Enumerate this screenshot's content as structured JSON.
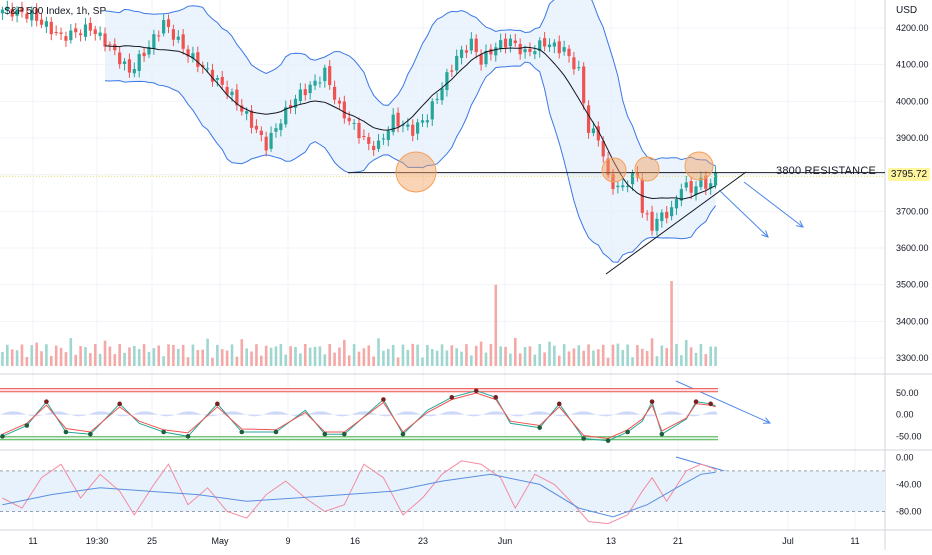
{
  "header": {
    "title": "S&P 500 Index, 1h, SP",
    "currency": "USD"
  },
  "price_label": "3795.72",
  "annotation": {
    "resistance": "3800 RESISTANCE"
  },
  "colors": {
    "up": "#26a69a",
    "down": "#ef5350",
    "band": "#3b78e7",
    "band_fill": "#e3eefc",
    "ma": "#131722",
    "circle": "#f5a05a",
    "arrow": "#4a86e8"
  },
  "chart_data": [
    {
      "type": "candlestick",
      "title": "S&P 500 Index, 1h, SP",
      "ylabel": "USD",
      "y_ticks": [
        "4200.00",
        "4100.00",
        "4000.00",
        "3900.00",
        "3800.00",
        "3700.00",
        "3600.00",
        "3500.00",
        "3400.00",
        "3300.00"
      ],
      "x_ticks": [
        "11",
        "19:30",
        "25",
        "May",
        "9",
        "16",
        "23",
        "Jun",
        "13",
        "21",
        "Jul",
        "11"
      ],
      "last_price": 3795.72,
      "resistance_level": 3800,
      "resistance_label": "3800 RESISTANCE",
      "close_trace": [
        [
          0,
          4250
        ],
        [
          6,
          4235
        ],
        [
          12,
          4175
        ],
        [
          18,
          4200
        ],
        [
          22,
          4150
        ],
        [
          26,
          4080
        ],
        [
          30,
          4150
        ],
        [
          33,
          4215
        ],
        [
          38,
          4130
        ],
        [
          42,
          4080
        ],
        [
          46,
          4030
        ],
        [
          50,
          3960
        ],
        [
          54,
          3880
        ],
        [
          57,
          3950
        ],
        [
          60,
          4010
        ],
        [
          64,
          4050
        ],
        [
          66,
          4080
        ],
        [
          69,
          3980
        ],
        [
          72,
          3930
        ],
        [
          75,
          3880
        ],
        [
          77,
          3880
        ],
        [
          80,
          3950
        ],
        [
          84,
          3920
        ],
        [
          87,
          3960
        ],
        [
          90,
          4040
        ],
        [
          93,
          4120
        ],
        [
          96,
          4160
        ],
        [
          98,
          4110
        ],
        [
          101,
          4150
        ],
        [
          104,
          4165
        ],
        [
          107,
          4130
        ],
        [
          111,
          4160
        ],
        [
          115,
          4140
        ],
        [
          118,
          4080
        ],
        [
          120,
          3920
        ],
        [
          122,
          3905
        ],
        [
          124,
          3790
        ],
        [
          126,
          3760
        ],
        [
          128,
          3780
        ],
        [
          130,
          3800
        ],
        [
          131,
          3700
        ],
        [
          133,
          3660
        ],
        [
          135,
          3690
        ],
        [
          137,
          3700
        ],
        [
          139,
          3770
        ],
        [
          141,
          3760
        ],
        [
          143,
          3780
        ],
        [
          145,
          3770
        ],
        [
          146,
          3800
        ]
      ],
      "volume_spikes": [
        {
          "x": 101,
          "height_price": 3500
        },
        {
          "x": 137,
          "height_price": 3510
        }
      ]
    },
    {
      "type": "line",
      "title": "Stochastic RSI",
      "y_ticks": [
        "50.00",
        "0.00",
        "-50.00"
      ],
      "ylim": [
        -70,
        80
      ],
      "levels": [
        60,
        53,
        -51,
        -58
      ],
      "series": [
        {
          "values": [
            [
              0,
              -50
            ],
            [
              5,
              -25
            ],
            [
              9,
              30
            ],
            [
              13,
              -40
            ],
            [
              18,
              -45
            ],
            [
              24,
              25
            ],
            [
              28,
              -20
            ],
            [
              33,
              -40
            ],
            [
              38,
              -50
            ],
            [
              44,
              25
            ],
            [
              49,
              -40
            ],
            [
              56,
              -40
            ],
            [
              62,
              10
            ],
            [
              66,
              -45
            ],
            [
              70,
              -45
            ],
            [
              78,
              35
            ],
            [
              82,
              -45
            ],
            [
              87,
              10
            ],
            [
              92,
              40
            ],
            [
              97,
              55
            ],
            [
              101,
              40
            ],
            [
              104,
              -20
            ],
            [
              110,
              -30
            ],
            [
              114,
              25
            ],
            [
              119,
              -55
            ],
            [
              124,
              -60
            ],
            [
              128,
              -40
            ],
            [
              131,
              -15
            ],
            [
              133,
              30
            ],
            [
              135,
              -45
            ],
            [
              140,
              -10
            ],
            [
              142,
              30
            ],
            [
              145,
              25
            ],
            [
              146,
              20
            ]
          ]
        },
        {
          "values": [
            [
              0,
              -45
            ],
            [
              5,
              -20
            ],
            [
              9,
              22
            ],
            [
              13,
              -32
            ],
            [
              18,
              -40
            ],
            [
              24,
              18
            ],
            [
              28,
              -15
            ],
            [
              33,
              -35
            ],
            [
              38,
              -42
            ],
            [
              44,
              18
            ],
            [
              49,
              -33
            ],
            [
              56,
              -35
            ],
            [
              62,
              5
            ],
            [
              66,
              -40
            ],
            [
              70,
              -40
            ],
            [
              78,
              28
            ],
            [
              82,
              -40
            ],
            [
              87,
              5
            ],
            [
              92,
              35
            ],
            [
              97,
              50
            ],
            [
              101,
              35
            ],
            [
              104,
              -15
            ],
            [
              110,
              -25
            ],
            [
              114,
              18
            ],
            [
              119,
              -48
            ],
            [
              124,
              -55
            ],
            [
              128,
              -35
            ],
            [
              131,
              -10
            ],
            [
              133,
              22
            ],
            [
              135,
              -38
            ],
            [
              140,
              -8
            ],
            [
              142,
              25
            ],
            [
              145,
              22
            ],
            [
              146,
              18
            ]
          ]
        }
      ]
    },
    {
      "type": "line",
      "title": "Williams %R",
      "y_ticks": [
        "0.00",
        "-40.00",
        "-80.00"
      ],
      "ylim": [
        -100,
        8
      ],
      "levels": [
        -20,
        -80
      ],
      "series": [
        {
          "values": [
            [
              0,
              -60
            ],
            [
              4,
              -75
            ],
            [
              8,
              -30
            ],
            [
              12,
              -10
            ],
            [
              16,
              -60
            ],
            [
              20,
              -25
            ],
            [
              24,
              -50
            ],
            [
              27,
              -85
            ],
            [
              31,
              -40
            ],
            [
              34,
              -10
            ],
            [
              38,
              -70
            ],
            [
              42,
              -45
            ],
            [
              46,
              -80
            ],
            [
              50,
              -90
            ],
            [
              54,
              -55
            ],
            [
              58,
              -35
            ],
            [
              62,
              -60
            ],
            [
              66,
              -80
            ],
            [
              70,
              -70
            ],
            [
              74,
              -10
            ],
            [
              78,
              -30
            ],
            [
              82,
              -85
            ],
            [
              86,
              -60
            ],
            [
              90,
              -25
            ],
            [
              94,
              -5
            ],
            [
              98,
              -10
            ],
            [
              102,
              -30
            ],
            [
              105,
              -75
            ],
            [
              109,
              -25
            ],
            [
              113,
              -40
            ],
            [
              117,
              -70
            ],
            [
              120,
              -95
            ],
            [
              124,
              -98
            ],
            [
              128,
              -85
            ],
            [
              131,
              -50
            ],
            [
              133,
              -30
            ],
            [
              136,
              -65
            ],
            [
              140,
              -20
            ],
            [
              143,
              -10
            ],
            [
              145,
              -15
            ],
            [
              146,
              -18
            ]
          ]
        },
        {
          "values": [
            [
              0,
              -70
            ],
            [
              10,
              -55
            ],
            [
              20,
              -45
            ],
            [
              30,
              -50
            ],
            [
              40,
              -55
            ],
            [
              50,
              -65
            ],
            [
              60,
              -60
            ],
            [
              70,
              -55
            ],
            [
              80,
              -50
            ],
            [
              90,
              -35
            ],
            [
              100,
              -25
            ],
            [
              110,
              -40
            ],
            [
              118,
              -75
            ],
            [
              125,
              -88
            ],
            [
              132,
              -70
            ],
            [
              138,
              -45
            ],
            [
              143,
              -25
            ],
            [
              146,
              -22
            ]
          ]
        }
      ]
    }
  ]
}
